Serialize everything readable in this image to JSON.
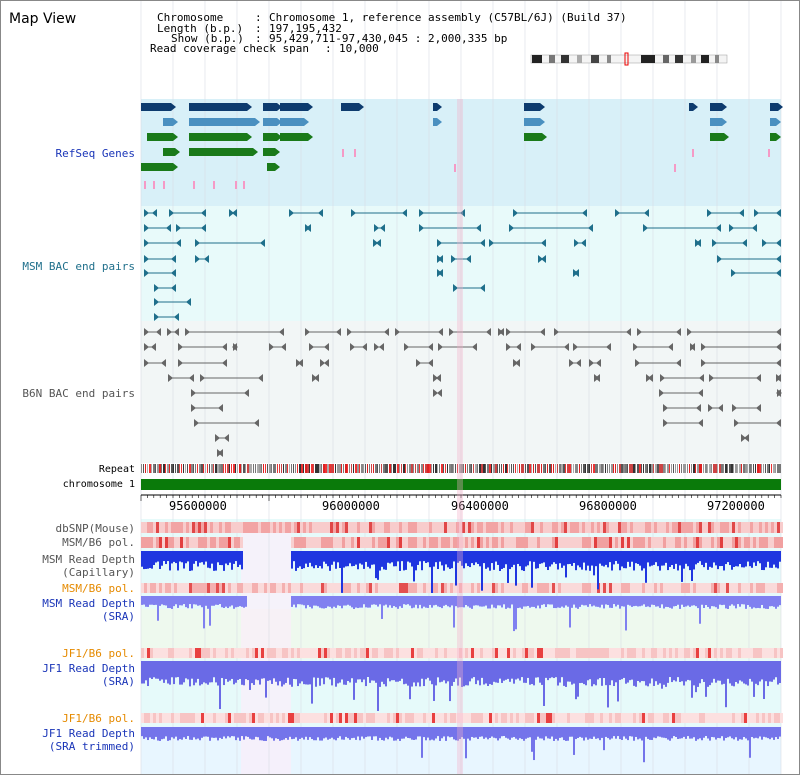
{
  "view_title": "Map View",
  "info": {
    "chromosome_key": "Chromosome",
    "chromosome_value": "Chromosome 1, reference assembly (C57BL/6J) (Build 37)",
    "length_key": "Length (b.p.)",
    "length_value": "197,195,432",
    "show_key": "Show (b.p.)",
    "show_value": "95,429,711-97,430,045 : 2,000,335 bp",
    "coverage_key": "Read coverage check span",
    "coverage_value": "10,000"
  },
  "tracks": {
    "refseq": "RefSeq Genes",
    "msm_bac": "MSM BAC end pairs",
    "b6n_bac": "B6N BAC end pairs",
    "repeat": "Repeat",
    "chromosome": "chromosome 1",
    "dbsnp": "dbSNP(Mouse)",
    "msm_b6_pol_1": "MSM/B6 pol.",
    "msm_depth_cap_1": "MSM Read Depth",
    "msm_depth_cap_2": "(Capillary)",
    "msm_b6_pol_2": "MSM/B6 pol.",
    "msm_depth_sra_1": "MSM Read Depth",
    "msm_depth_sra_2": "(SRA)",
    "jf1_b6_pol_1": "JF1/B6 pol.",
    "jf1_depth_sra_1": "JF1 Read Depth",
    "jf1_depth_sra_2": "(SRA)",
    "jf1_b6_pol_2": "JF1/B6 pol.",
    "jf1_depth_trim_1": "JF1 Read Depth",
    "jf1_depth_trim_2": "(SRA trimmed)"
  },
  "axis": {
    "ticks": [
      "95600000",
      "96000000",
      "96400000",
      "96800000",
      "97200000"
    ]
  },
  "colors": {
    "refseq_dark": "#0d3b6e",
    "refseq_mid": "#4a90c0",
    "refseq_green": "#1a7a1a",
    "msm_bac": "#1f6f8b",
    "b6n_bac": "#666666",
    "depth_blue": "#2233dd",
    "depth_light": "#7777ee",
    "label_blue": "#1a35b8",
    "label_orange": "#e58a00",
    "label_teal": "#1f6f8b"
  }
}
